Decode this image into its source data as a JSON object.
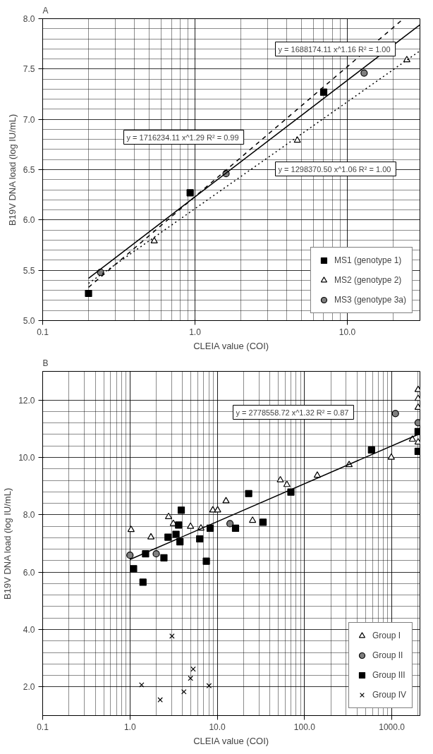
{
  "chart_data": [
    {
      "type": "scatter",
      "title": "A",
      "xlabel": "CLEIA value (COI)",
      "ylabel": "B19V DNA load (log IU/mL)",
      "log": "x",
      "xlim": [
        0.1,
        30
      ],
      "ylim": [
        5.0,
        8.0
      ],
      "xticks": [
        {
          "value": 0.1,
          "label": "0.1"
        },
        {
          "value": 1,
          "label": "1.0"
        },
        {
          "value": 10,
          "label": "10.0"
        }
      ],
      "yticks": [
        {
          "value": 5,
          "label": "5.0"
        },
        {
          "value": 5.5,
          "label": "5.5"
        },
        {
          "value": 6,
          "label": "6.0"
        },
        {
          "value": 6.5,
          "label": "6.5"
        },
        {
          "value": 7,
          "label": "7.0"
        },
        {
          "value": 7.5,
          "label": "7.5"
        },
        {
          "value": 8,
          "label": "8.0"
        }
      ],
      "grid": true,
      "legend": "bottom right",
      "series": [
        {
          "name": "MS1 (genotype 1)",
          "marker": "square",
          "color": "#000000",
          "x": [
            0.2,
            0.93,
            7.0
          ],
          "values": [
            5.27,
            6.27,
            7.27
          ]
        },
        {
          "name": "MS2 (genotype 2)",
          "marker": "triangle",
          "color": "#000000",
          "x": [
            0.54,
            4.7,
            24.6
          ],
          "values": [
            5.79,
            6.79,
            7.59
          ]
        },
        {
          "name": "MS3 (genotype 3a)",
          "marker": "circle",
          "color": "#7f7f7f",
          "x": [
            0.24,
            1.6,
            12.9
          ],
          "values": [
            5.48,
            6.46,
            7.46
          ]
        },
        {
          "type": "line",
          "line_style": "dashed",
          "color": "#000000",
          "x": [
            0.2,
            23
          ],
          "values": [
            5.33,
            7.99
          ]
        },
        {
          "type": "line",
          "line_style": "dotted",
          "color": "#000000",
          "x": [
            0.2,
            30
          ],
          "values": [
            5.37,
            7.68
          ]
        },
        {
          "type": "line",
          "line_style": "solid",
          "color": "#000000",
          "x": [
            0.2,
            30
          ],
          "values": [
            5.42,
            7.94
          ]
        }
      ],
      "annotations": [
        "y = 1688174.11 x^1.16  R² = 1.00",
        "y = 1716234.11 x^1.29  R² = 0.99",
        "y = 1298370.50 x^1.06  R² = 1.00"
      ]
    },
    {
      "type": "scatter",
      "title": "B",
      "xlabel": "CLEIA value (COI)",
      "ylabel": "B19V DNA load (log IU/mL)",
      "log": "x",
      "xlim": [
        0.1,
        2100
      ],
      "ylim": [
        1.0,
        13.0
      ],
      "xticks": [
        {
          "value": 0.1,
          "label": "0.1"
        },
        {
          "value": 1,
          "label": "1.0"
        },
        {
          "value": 10,
          "label": "10.0"
        },
        {
          "value": 100,
          "label": "100.0"
        },
        {
          "value": 1000,
          "label": "1000.0"
        }
      ],
      "yticks": [
        {
          "value": 2,
          "label": "2.0"
        },
        {
          "value": 4,
          "label": "4.0"
        },
        {
          "value": 6,
          "label": "6.0"
        },
        {
          "value": 8,
          "label": "8.0"
        },
        {
          "value": 10,
          "label": "10.0"
        },
        {
          "value": 12,
          "label": "12.0"
        }
      ],
      "grid": true,
      "legend": "bottom right",
      "series": [
        {
          "name": "Group I",
          "marker": "triangle",
          "color": "#000000",
          "x": [
            1.03,
            1.74,
            2.77,
            3.14,
            4.94,
            6.5,
            8.9,
            10.1,
            12.6,
            25.4,
            52.8,
            62.8,
            140,
            324,
            986,
            1720,
            2000,
            2000,
            2000,
            2000
          ],
          "values": [
            7.48,
            7.22,
            7.93,
            7.69,
            7.59,
            7.53,
            8.16,
            8.16,
            8.48,
            7.8,
            9.21,
            9.05,
            9.37,
            9.74,
            10.0,
            10.63,
            12.36,
            12.05,
            11.74,
            10.53
          ]
        },
        {
          "name": "Group II",
          "marker": "circle",
          "color": "#7f7f7f",
          "x": [
            1.0,
            2.0,
            14,
            1100,
            2000
          ],
          "values": [
            6.59,
            6.64,
            7.69,
            11.53,
            11.21
          ]
        },
        {
          "name": "Group III",
          "marker": "square",
          "color": "#000000",
          "x": [
            1.1,
            1.41,
            1.51,
            2.45,
            2.73,
            3.37,
            3.74,
            3.87,
            3.61,
            6.3,
            7.5,
            8.3,
            16.2,
            22.9,
            33.5,
            69.8,
            585,
            2000,
            2000
          ],
          "values": [
            6.12,
            5.65,
            6.64,
            6.5,
            7.22,
            7.32,
            7.06,
            8.16,
            7.64,
            7.16,
            6.38,
            7.53,
            7.53,
            8.74,
            7.74,
            8.79,
            10.26,
            10.21,
            10.9
          ]
        },
        {
          "name": "Group IV",
          "marker": "cross",
          "color": "#000000",
          "x": [
            1.36,
            2.22,
            3.03,
            4.15,
            5.3,
            4.94,
            8.05
          ],
          "values": [
            2.07,
            1.55,
            3.77,
            1.83,
            2.62,
            2.3,
            2.04
          ]
        },
        {
          "type": "line",
          "line_style": "solid",
          "color": "#000000",
          "x": [
            1,
            2000
          ],
          "values": [
            6.44,
            10.8
          ]
        }
      ],
      "annotations": [
        "y = 2778558.72 x^1.32  R² = 0.87"
      ]
    }
  ]
}
